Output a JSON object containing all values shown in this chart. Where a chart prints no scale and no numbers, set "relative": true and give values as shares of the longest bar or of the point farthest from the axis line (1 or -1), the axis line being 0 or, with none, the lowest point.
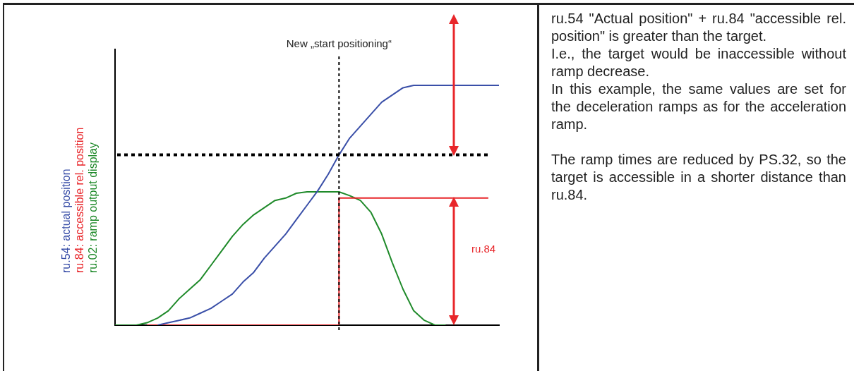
{
  "chart_data": {
    "type": "line",
    "relative": true,
    "legend": "left",
    "categories": [
      null,
      null,
      null,
      null,
      null,
      null,
      null,
      null,
      null,
      null,
      null,
      null,
      null,
      null,
      null,
      null,
      null,
      null,
      null,
      null,
      null,
      null,
      null,
      null,
      null,
      null,
      null,
      null,
      null,
      null,
      null,
      null,
      null,
      null,
      null,
      null,
      null
    ],
    "series": [
      {
        "name": "ru.54: actual position",
        "color": "#3a4fa8",
        "values": [
          null,
          null,
          null,
          null,
          0,
          0.01,
          0.02,
          0.03,
          0.05,
          0.07,
          0.1,
          0.13,
          0.18,
          0.22,
          0.28,
          0.33,
          0.38,
          0.44,
          0.5,
          0.56,
          0.63,
          0.71,
          0.78,
          0.83,
          0.88,
          0.93,
          0.96,
          0.99,
          1,
          1,
          1,
          1,
          1,
          1,
          1,
          1,
          1
        ]
      },
      {
        "name": "ru.84: accessible rel. position",
        "color": "#e8262a",
        "type": "step",
        "values": [
          null,
          null,
          null,
          0,
          0,
          0,
          0,
          0,
          0,
          0,
          0,
          0,
          0,
          0,
          0,
          0,
          0,
          0,
          0,
          0,
          0,
          0.53,
          0.53,
          0.53,
          0.53,
          0.53,
          0.53,
          0.53,
          0.53,
          0.53,
          0.53,
          0.53,
          0.53,
          0.53,
          0.53,
          0.53,
          null
        ]
      },
      {
        "name": "ru.02: ramp output display",
        "color": "#1f8a2a",
        "values": [
          0,
          0,
          0,
          0.01,
          0.03,
          0.06,
          0.11,
          0.15,
          0.19,
          0.25,
          0.31,
          0.37,
          0.42,
          0.46,
          0.49,
          0.52,
          0.53,
          0.55,
          0.556,
          0.556,
          0.556,
          0.556,
          0.54,
          0.52,
          0.47,
          0.38,
          0.26,
          0.15,
          0.06,
          0.02,
          0,
          0,
          null,
          null,
          null,
          null,
          null
        ]
      }
    ],
    "ref_lines": [
      {
        "axis": "y",
        "value": 0.71,
        "color": "#000000",
        "line_style": "dotted"
      }
    ],
    "annotations": [
      "ru.84",
      "New „start positioning“",
      "ru.54 \"Actual position\" + ru.84 \"accessible rel. position\" is greater than the target.",
      "I.e., the target would be inaccessible without ramp decrease.",
      "In this example, the same values are set for the deceleration ramps as for the acceleration ramp.",
      "The ramp times are reduced by PS.32, so the target is accessible in a shorter distance than ru.84."
    ]
  }
}
